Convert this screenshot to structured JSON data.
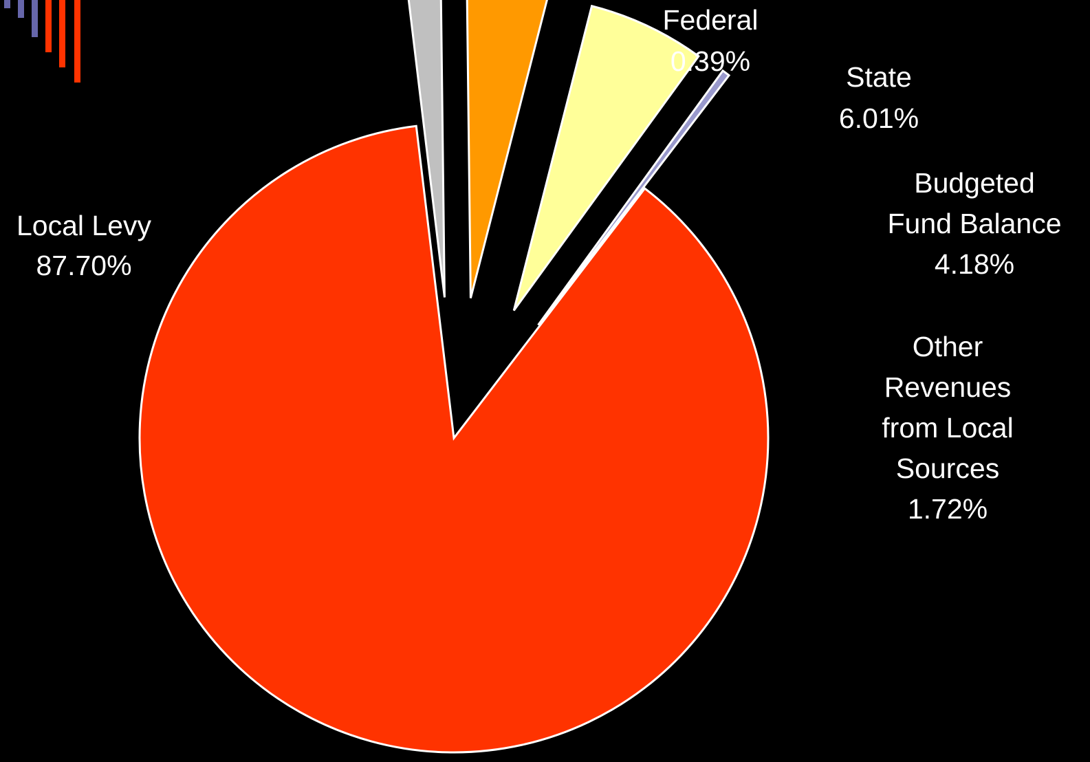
{
  "chart_data": {
    "type": "pie",
    "title": "",
    "slices": [
      {
        "name": "Local Levy",
        "value": 87.7,
        "label_lines": [
          "Local Levy",
          "87.70%"
        ],
        "color": "#FF3300",
        "exploded": false
      },
      {
        "name": "Other Revenues from Local Sources",
        "value": 1.72,
        "label_lines": [
          "Other",
          "Revenues",
          "from Local",
          "Sources",
          "1.72%"
        ],
        "color": "#C0C0C0",
        "exploded": true
      },
      {
        "name": "Budgeted Fund Balance",
        "value": 4.18,
        "label_lines": [
          "Budgeted",
          "Fund Balance",
          "4.18%"
        ],
        "color": "#FF9900",
        "exploded": true
      },
      {
        "name": "State",
        "value": 6.01,
        "label_lines": [
          "State",
          "6.01%"
        ],
        "color": "#FFFF99",
        "exploded": true
      },
      {
        "name": "Federal",
        "value": 0.39,
        "label_lines": [
          "Federal",
          "0.39%"
        ],
        "color": "#9999CC",
        "exploded": true
      }
    ],
    "slice_outline_color": "#FFFFFF",
    "label_color": "#FFFFFF",
    "legend": "none"
  },
  "decoration": {
    "corner_bar_colors": [
      "#6666AA",
      "#6666AA",
      "#6666AA",
      "#FF3300",
      "#FF3300",
      "#FF3300"
    ]
  }
}
